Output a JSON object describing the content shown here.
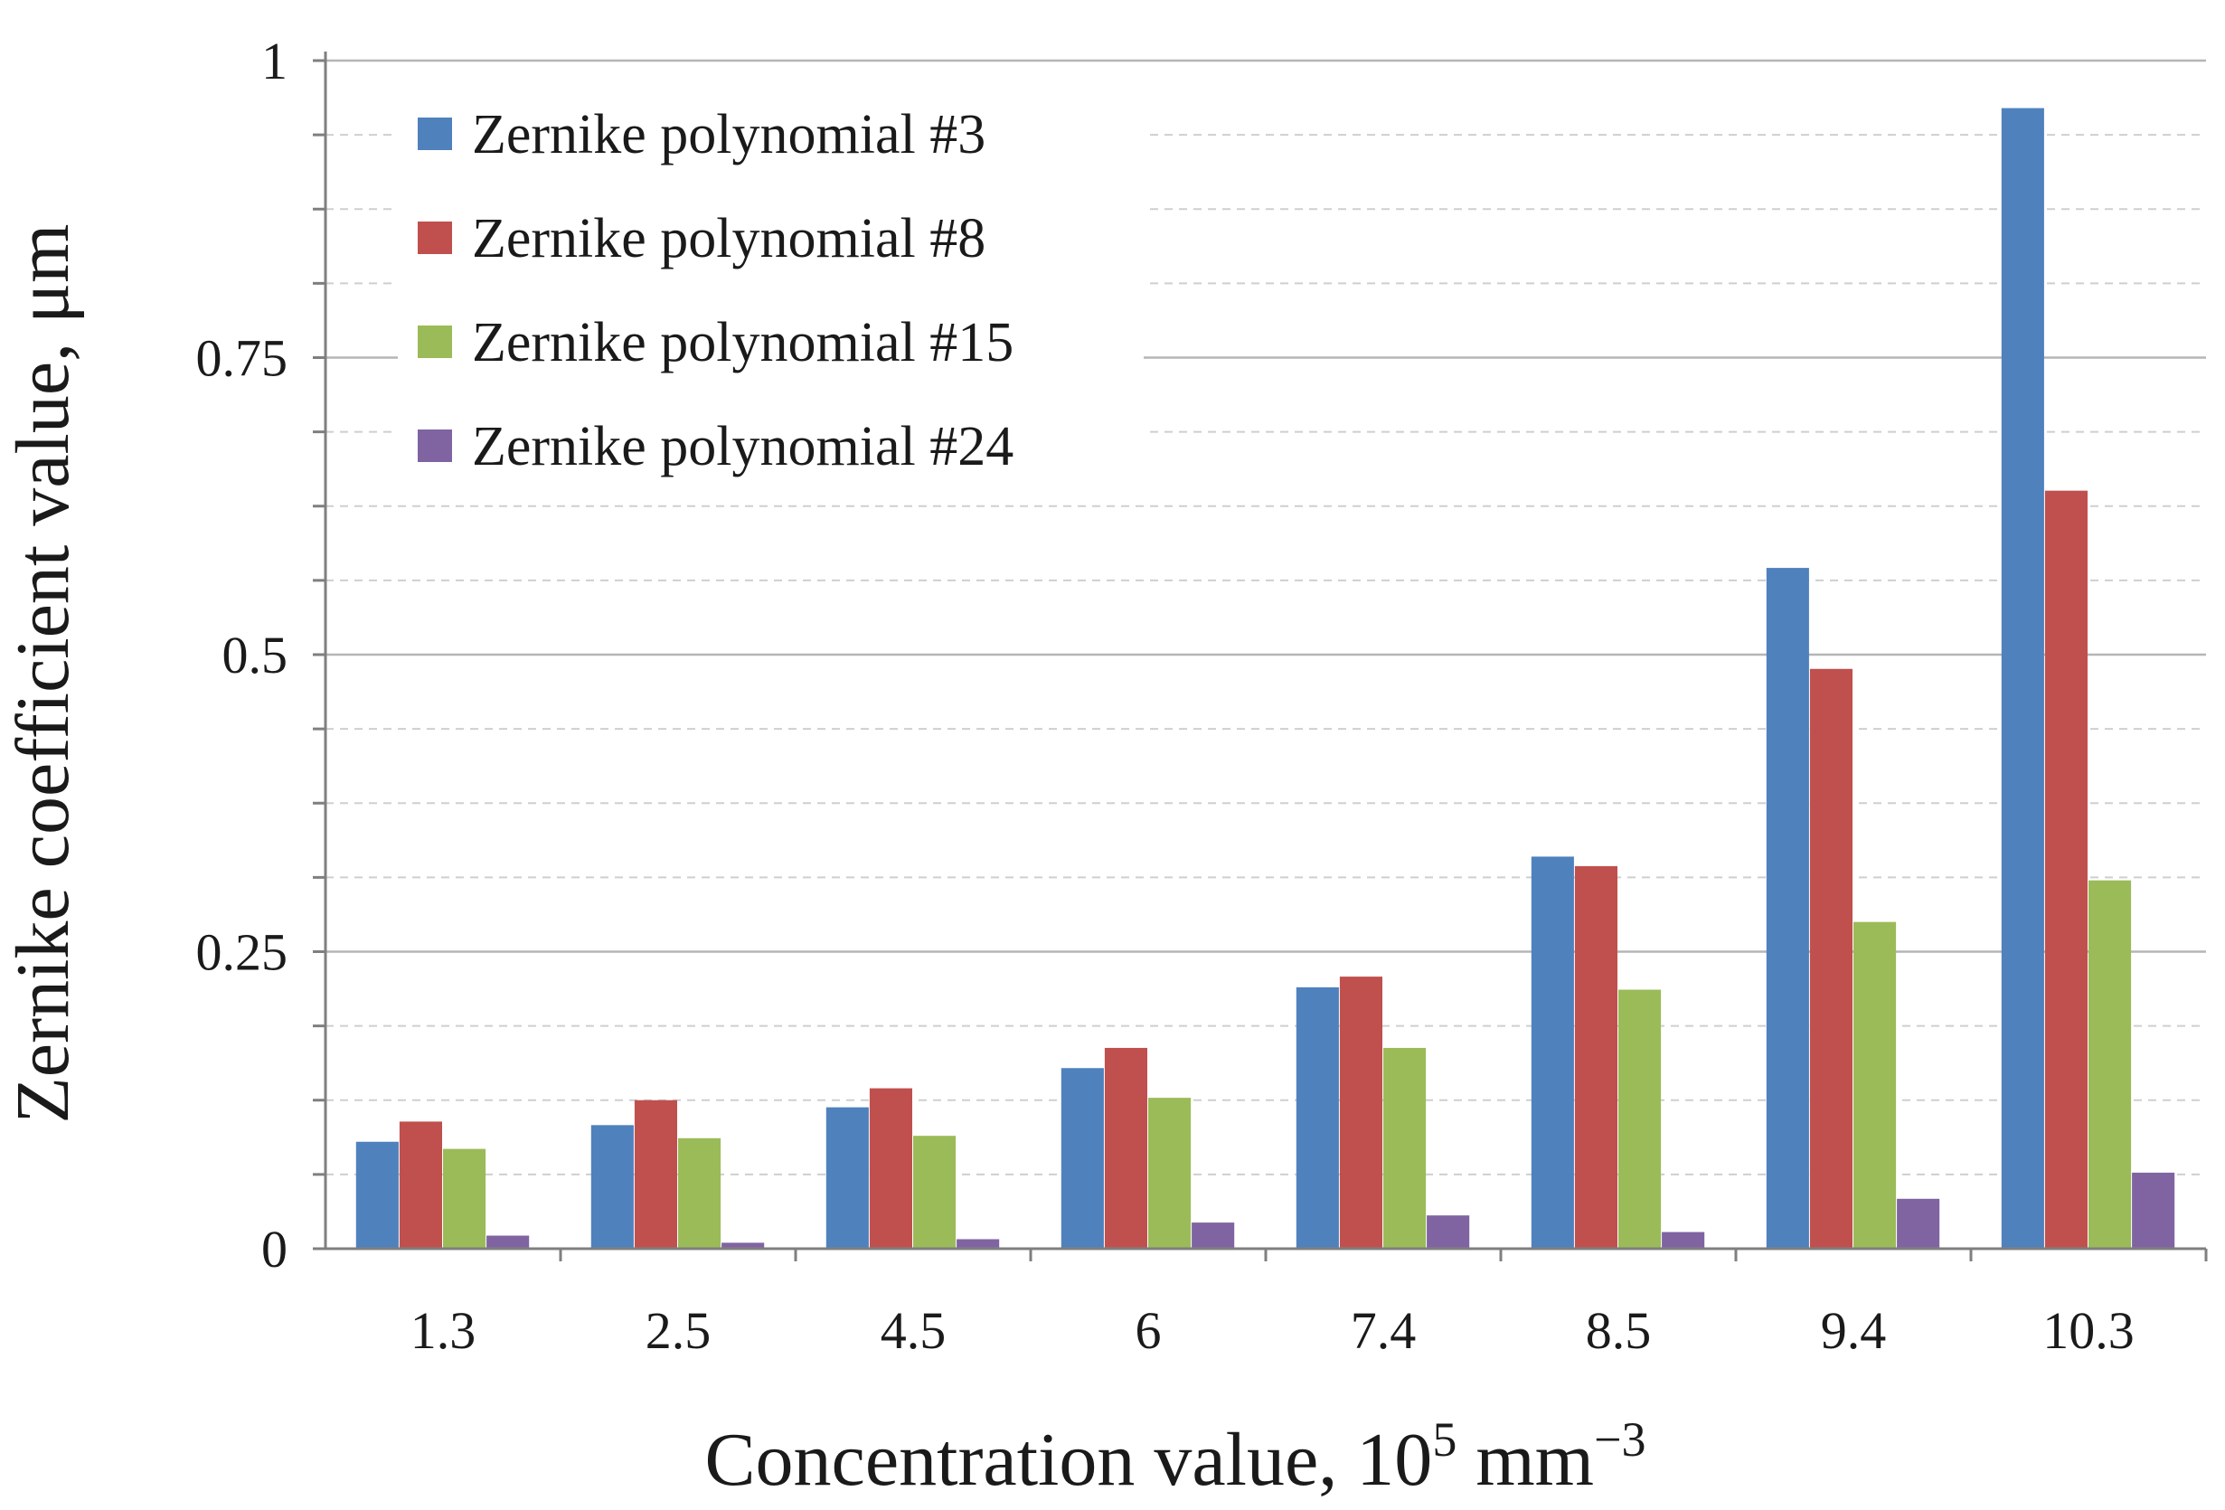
{
  "chart_data": {
    "type": "bar",
    "title": "",
    "xlabel": "Concentration value, 10",
    "xlabel_sup1": "5",
    "xlabel_unit": " mm",
    "xlabel_sup2": "−3",
    "ylabel": "Zernike coefficient value, μm",
    "categories": [
      "1.3",
      "2.5",
      "4.5",
      "6",
      "7.4",
      "8.5",
      "9.4",
      "10.3"
    ],
    "ylim": [
      0,
      1
    ],
    "yticks": [
      0,
      0.25,
      0.5,
      0.75,
      1
    ],
    "ytick_labels": [
      "0",
      "0.25",
      "0.5",
      "0.75",
      "1"
    ],
    "grid": "solid major lines, dashed minor lines",
    "legend_position": "top-left",
    "series": [
      {
        "name": "Zernike polynomial #3",
        "color": "#4f81bd",
        "values": [
          0.09,
          0.104,
          0.119,
          0.152,
          0.22,
          0.33,
          0.573,
          0.96
        ]
      },
      {
        "name": "Zernike polynomial #8",
        "color": "#c0504d",
        "values": [
          0.107,
          0.125,
          0.135,
          0.169,
          0.229,
          0.322,
          0.488,
          0.638
        ]
      },
      {
        "name": "Zernike polynomial #15",
        "color": "#9bbb59",
        "values": [
          0.084,
          0.093,
          0.095,
          0.127,
          0.169,
          0.218,
          0.275,
          0.31
        ]
      },
      {
        "name": "Zernike polynomial #24",
        "color": "#8064a2",
        "values": [
          0.011,
          0.005,
          0.008,
          0.022,
          0.028,
          0.014,
          0.042,
          0.064
        ]
      }
    ]
  }
}
